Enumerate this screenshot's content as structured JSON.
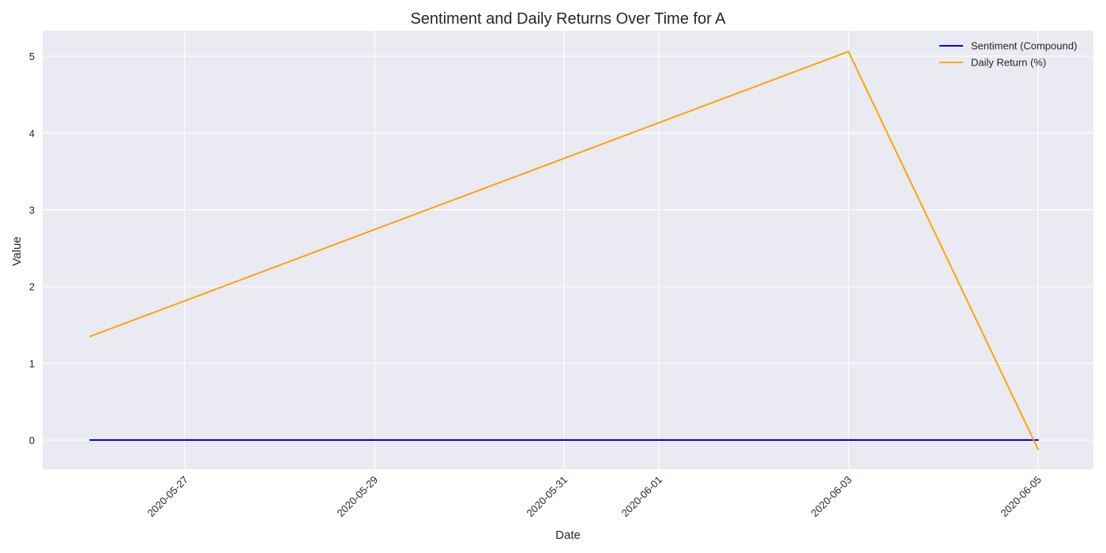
{
  "chart_data": {
    "type": "line",
    "title": "Sentiment and Daily Returns Over Time for A",
    "xlabel": "Date",
    "ylabel": "Value",
    "x_tick_labels": [
      "2020-05-27",
      "2020-05-29",
      "2020-05-31",
      "2020-06-01",
      "2020-06-03",
      "2020-06-05"
    ],
    "y_tick_labels": [
      "0",
      "1",
      "2",
      "3",
      "4",
      "5"
    ],
    "xlim": [
      "2020-05-25T12:00",
      "2020-06-05T14:00"
    ],
    "ylim": [
      -0.38,
      5.33
    ],
    "grid": true,
    "legend_position": "top-right",
    "series": [
      {
        "name": "Sentiment (Compound)",
        "color": "#0000ff",
        "x": [
          "2020-05-26",
          "2020-06-03",
          "2020-06-05"
        ],
        "y": [
          0.0,
          0.0,
          0.0
        ]
      },
      {
        "name": "Daily Return (%)",
        "color": "#ffa500",
        "x": [
          "2020-05-26",
          "2020-06-03",
          "2020-06-05"
        ],
        "y": [
          1.35,
          5.06,
          -0.12
        ]
      }
    ]
  }
}
